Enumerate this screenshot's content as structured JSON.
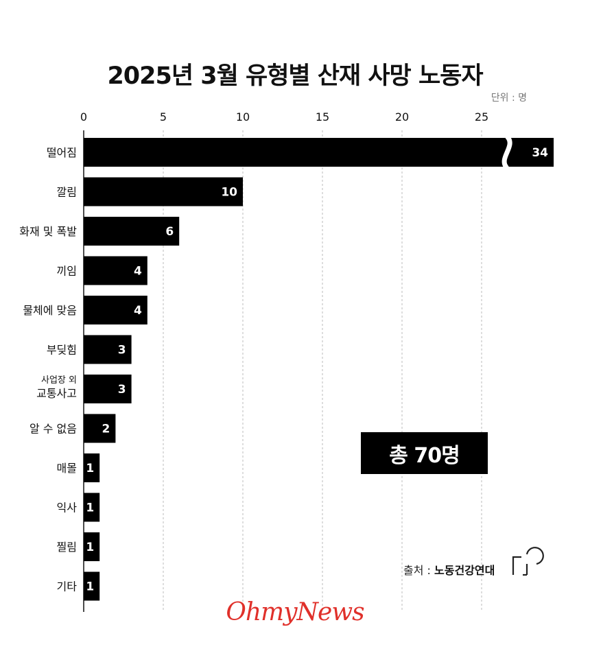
{
  "title": "2025년 3월 유형별 산재 사망 노동자",
  "unit_label": "단위 : 명",
  "total_label": "총 70명",
  "source": {
    "prefix": "출처 : ",
    "name": "노동건강연대"
  },
  "brand": "OhmyNews",
  "colors": {
    "bar": "#000000",
    "bar_text": "#ffffff",
    "grid": "#bbbbbb",
    "brand": "#e0302a"
  },
  "chart_data": {
    "type": "bar",
    "orientation": "horizontal",
    "categories": [
      [
        "떨어짐"
      ],
      [
        "깔림"
      ],
      [
        "화재 및 폭발"
      ],
      [
        "끼임"
      ],
      [
        "물체에 맞음"
      ],
      [
        "부딪힘"
      ],
      [
        "사업장 외",
        "교통사고"
      ],
      [
        "알 수 없음"
      ],
      [
        "매몰"
      ],
      [
        "익사"
      ],
      [
        "찔림"
      ],
      [
        "기타"
      ]
    ],
    "values": [
      34,
      10,
      6,
      4,
      4,
      3,
      3,
      2,
      1,
      1,
      1,
      1
    ],
    "x_ticks": [
      0,
      5,
      10,
      15,
      20,
      25
    ],
    "xlim": [
      0,
      25
    ],
    "axis_break": true,
    "grid": true
  }
}
